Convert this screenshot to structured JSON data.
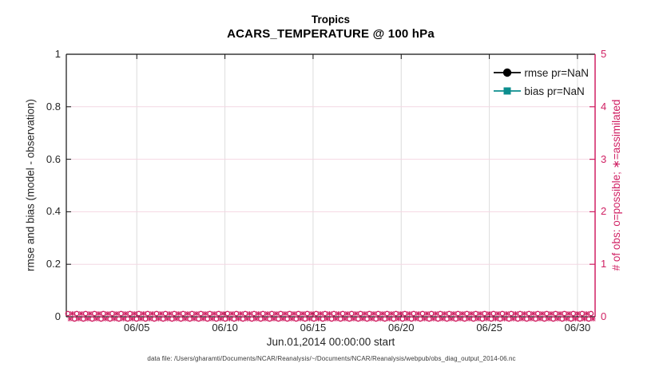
{
  "figure": {
    "title": "Tropics",
    "subtitle": "ACARS_TEMPERATURE @ 100 hPa",
    "xlabel": "Jun.01,2014 00:00:00 start",
    "ylabel_left": "rmse and bias (model - observation)",
    "ylabel_right": "# of obs: o=possible; ∗=assimilated",
    "datafile_note": "data file: /Users/gharamti/Documents/NCAR/Reanalysis/~/Documents/NCAR/Reanalysis/webpub/obs_diag_output_2014-06.nc"
  },
  "colors": {
    "axis_dark": "#111111",
    "text_dark": "#262626",
    "right_axis": "#D02063",
    "rmse_black": "#000000",
    "bias_teal": "#0C8E8E",
    "grid_vertical": "#DCDCDC",
    "grid_horizontal": "#F4D7E3"
  },
  "legend": {
    "entries": [
      {
        "label": "rmse pr=NaN",
        "color": "#000000",
        "marker": "circle"
      },
      {
        "label": "bias pr=NaN",
        "color": "#0C8E8E",
        "marker": "square"
      }
    ]
  },
  "chart_data": {
    "type": "line",
    "title": "Tropics",
    "subtitle": "ACARS_TEMPERATURE @ 100 hPa",
    "xlabel": "Jun.01,2014 00:00:00 start",
    "ylabel_left": "rmse and bias (model - observation)",
    "ylabel_right": "# of obs: o=possible; ∗=assimilated",
    "grid": true,
    "legend_position": "upper-right-inside",
    "x_axis": {
      "start": "Jun.01,2014 00:00:00",
      "span_days": 30,
      "tick_labels": [
        "06/05",
        "06/10",
        "06/15",
        "06/20",
        "06/25",
        "06/30"
      ],
      "tick_day_offsets": [
        4,
        9,
        14,
        19,
        24,
        29
      ]
    },
    "y_left": {
      "lim": [
        0,
        1
      ],
      "ticks": [
        "0",
        "0.2",
        "0.4",
        "0.6",
        "0.8",
        "1"
      ]
    },
    "y_right": {
      "lim": [
        0,
        5
      ],
      "ticks": [
        "0",
        "1",
        "2",
        "3",
        "4",
        "5"
      ]
    },
    "series": [
      {
        "name": "rmse pr=NaN",
        "axis": "left",
        "color": "#000000",
        "marker": "circle",
        "values": "NaN (nothing plotted)",
        "plotted_points": 0
      },
      {
        "name": "bias pr=NaN",
        "axis": "left",
        "color": "#0C8E8E",
        "marker": "square",
        "values": "NaN (nothing plotted)",
        "plotted_points": 0
      },
      {
        "name": "# of obs possible (o)",
        "axis": "right",
        "color": "#D02063",
        "marker": "o",
        "constant_value": 0,
        "n_points": 120
      },
      {
        "name": "# of obs assimilated (∗)",
        "axis": "right",
        "color": "#D02063",
        "marker": "asterisk",
        "constant_value": 0,
        "n_points": 120
      }
    ]
  }
}
